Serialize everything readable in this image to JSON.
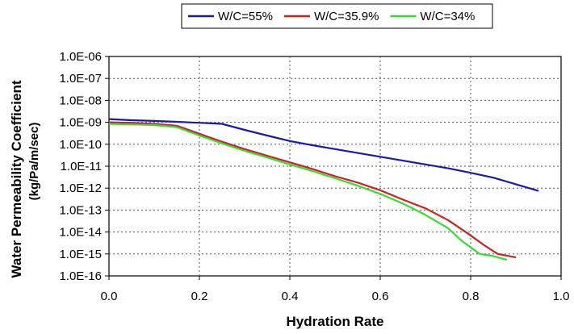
{
  "chart_data": {
    "type": "line",
    "title": "",
    "xlabel": "Hydration Rate",
    "ylabel": "Water Permeability Coefficient",
    "ylabel_units": "(kg/Pa/m/sec)",
    "y_scale": "log",
    "xlim": [
      0.0,
      1.0
    ],
    "ylim": [
      1e-16,
      1e-06
    ],
    "grid": true,
    "legend_position": "top",
    "x_ticks": [
      "0.0",
      "0.2",
      "0.4",
      "0.6",
      "0.8",
      "1.0"
    ],
    "y_ticks": [
      "1.0E-06",
      "1.0E-07",
      "1.0E-08",
      "1.0E-09",
      "1.0E-10",
      "1.0E-11",
      "1.0E-12",
      "1.0E-13",
      "1.0E-14",
      "1.0E-15",
      "1.0E-16"
    ],
    "series": [
      {
        "name": "W/C=55%",
        "color": "#1a1aa6",
        "points": [
          [
            0.0,
            1.4e-09
          ],
          [
            0.05,
            1.25e-09
          ],
          [
            0.1,
            1.15e-09
          ],
          [
            0.15,
            1.05e-09
          ],
          [
            0.2,
            9.5e-10
          ],
          [
            0.25,
            8.5e-10
          ],
          [
            0.3,
            4.5e-10
          ],
          [
            0.35,
            2.5e-10
          ],
          [
            0.4,
            1.4e-10
          ],
          [
            0.45,
            9e-11
          ],
          [
            0.5,
            6e-11
          ],
          [
            0.55,
            4e-11
          ],
          [
            0.6,
            2.7e-11
          ],
          [
            0.65,
            1.8e-11
          ],
          [
            0.7,
            1.2e-11
          ],
          [
            0.75,
            8e-12
          ],
          [
            0.8,
            5e-12
          ],
          [
            0.85,
            3e-12
          ],
          [
            0.9,
            1.5e-12
          ],
          [
            0.95,
            7.5e-13
          ]
        ]
      },
      {
        "name": "W/C=35.9%",
        "color": "#cc2222",
        "points": [
          [
            0.0,
            1e-09
          ],
          [
            0.05,
            9.5e-10
          ],
          [
            0.1,
            8.5e-10
          ],
          [
            0.15,
            7e-10
          ],
          [
            0.2,
            3e-10
          ],
          [
            0.25,
            1.3e-10
          ],
          [
            0.3,
            6e-11
          ],
          [
            0.35,
            3e-11
          ],
          [
            0.4,
            1.5e-11
          ],
          [
            0.45,
            7.5e-12
          ],
          [
            0.5,
            3.5e-12
          ],
          [
            0.55,
            1.8e-12
          ],
          [
            0.6,
            8e-13
          ],
          [
            0.65,
            3e-13
          ],
          [
            0.7,
            1.2e-13
          ],
          [
            0.75,
            3.5e-14
          ],
          [
            0.8,
            7e-15
          ],
          [
            0.83,
            2.5e-15
          ],
          [
            0.86,
            1e-15
          ],
          [
            0.9,
            7e-16
          ]
        ]
      },
      {
        "name": "W/C=34%",
        "color": "#33dd33",
        "points": [
          [
            0.0,
            8.5e-10
          ],
          [
            0.05,
            8e-10
          ],
          [
            0.1,
            7.5e-10
          ],
          [
            0.15,
            6e-10
          ],
          [
            0.2,
            2.5e-10
          ],
          [
            0.25,
            1.1e-10
          ],
          [
            0.3,
            5e-11
          ],
          [
            0.35,
            2.5e-11
          ],
          [
            0.4,
            1.2e-11
          ],
          [
            0.45,
            6e-12
          ],
          [
            0.5,
            2.8e-12
          ],
          [
            0.55,
            1.3e-12
          ],
          [
            0.6,
            5.5e-13
          ],
          [
            0.65,
            2e-13
          ],
          [
            0.7,
            6e-14
          ],
          [
            0.75,
            1.5e-14
          ],
          [
            0.78,
            4e-15
          ],
          [
            0.82,
            1e-15
          ],
          [
            0.85,
            8e-16
          ],
          [
            0.88,
            5.5e-16
          ]
        ]
      }
    ]
  }
}
